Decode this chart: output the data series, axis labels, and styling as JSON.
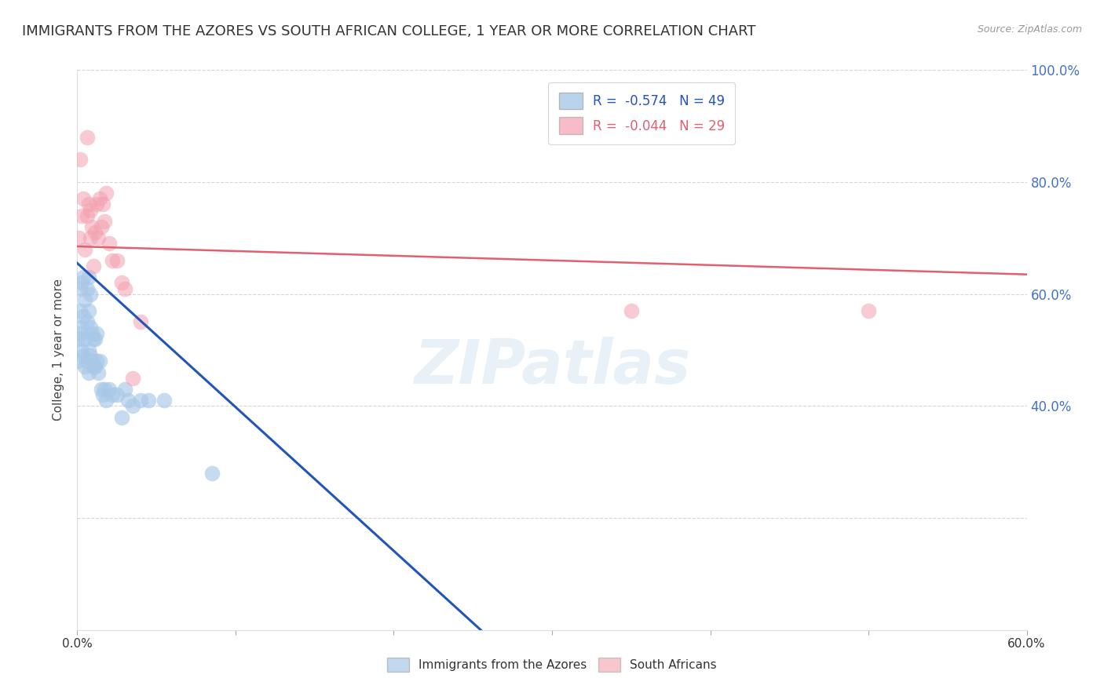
{
  "title": "IMMIGRANTS FROM THE AZORES VS SOUTH AFRICAN COLLEGE, 1 YEAR OR MORE CORRELATION CHART",
  "source": "Source: ZipAtlas.com",
  "ylabel": "College, 1 year or more",
  "xlim": [
    0.0,
    0.6
  ],
  "ylim": [
    0.0,
    1.0
  ],
  "xticks": [
    0.0,
    0.1,
    0.2,
    0.3,
    0.4,
    0.5,
    0.6
  ],
  "xtick_labels": [
    "0.0%",
    "",
    "",
    "",
    "",
    "",
    "60.0%"
  ],
  "yticks": [
    0.0,
    0.2,
    0.4,
    0.6,
    0.8,
    1.0
  ],
  "ytick_labels_right": [
    "",
    "40.0%",
    "60.0%",
    "80.0%",
    "100.0%"
  ],
  "yticks_right": [
    0.0,
    0.4,
    0.6,
    0.8,
    1.0
  ],
  "legend_label1": "Immigrants from the Azores",
  "legend_label2": "South Africans",
  "blue_color": "#a8c8e8",
  "pink_color": "#f4a0b0",
  "blue_line_color": "#2255bb",
  "pink_line_color": "#e06070",
  "watermark": "ZIPatlas",
  "blue_r": -0.574,
  "blue_n": 49,
  "pink_r": -0.044,
  "pink_n": 29,
  "blue_scatter_x": [
    0.001,
    0.001,
    0.002,
    0.002,
    0.002,
    0.003,
    0.003,
    0.003,
    0.004,
    0.004,
    0.004,
    0.005,
    0.005,
    0.005,
    0.006,
    0.006,
    0.006,
    0.007,
    0.007,
    0.007,
    0.007,
    0.008,
    0.008,
    0.008,
    0.009,
    0.009,
    0.01,
    0.01,
    0.011,
    0.011,
    0.012,
    0.012,
    0.013,
    0.014,
    0.015,
    0.016,
    0.017,
    0.018,
    0.02,
    0.022,
    0.025,
    0.028,
    0.03,
    0.032,
    0.035,
    0.04,
    0.045,
    0.055,
    0.085
  ],
  "blue_scatter_y": [
    0.48,
    0.52,
    0.53,
    0.57,
    0.61,
    0.5,
    0.54,
    0.62,
    0.49,
    0.56,
    0.63,
    0.47,
    0.52,
    0.59,
    0.48,
    0.55,
    0.61,
    0.46,
    0.5,
    0.57,
    0.63,
    0.49,
    0.54,
    0.6,
    0.48,
    0.53,
    0.47,
    0.52,
    0.47,
    0.52,
    0.48,
    0.53,
    0.46,
    0.48,
    0.43,
    0.42,
    0.43,
    0.41,
    0.43,
    0.42,
    0.42,
    0.38,
    0.43,
    0.41,
    0.4,
    0.41,
    0.41,
    0.41,
    0.28
  ],
  "pink_scatter_x": [
    0.001,
    0.002,
    0.003,
    0.004,
    0.005,
    0.006,
    0.006,
    0.007,
    0.008,
    0.008,
    0.009,
    0.01,
    0.011,
    0.012,
    0.013,
    0.014,
    0.015,
    0.016,
    0.017,
    0.018,
    0.02,
    0.022,
    0.025,
    0.028,
    0.03,
    0.035,
    0.04,
    0.35,
    0.5
  ],
  "pink_scatter_y": [
    0.7,
    0.84,
    0.74,
    0.77,
    0.68,
    0.88,
    0.74,
    0.76,
    0.7,
    0.75,
    0.72,
    0.65,
    0.71,
    0.76,
    0.7,
    0.77,
    0.72,
    0.76,
    0.73,
    0.78,
    0.69,
    0.66,
    0.66,
    0.62,
    0.61,
    0.45,
    0.55,
    0.57,
    0.57
  ],
  "blue_trend_x": [
    0.0,
    0.255
  ],
  "blue_trend_y": [
    0.655,
    0.0
  ],
  "pink_trend_x": [
    0.0,
    0.6
  ],
  "pink_trend_y": [
    0.685,
    0.635
  ],
  "background_color": "#ffffff",
  "grid_color": "#cccccc",
  "title_fontsize": 13,
  "axis_label_fontsize": 11,
  "tick_fontsize": 11,
  "right_tick_color": "#4472c4"
}
